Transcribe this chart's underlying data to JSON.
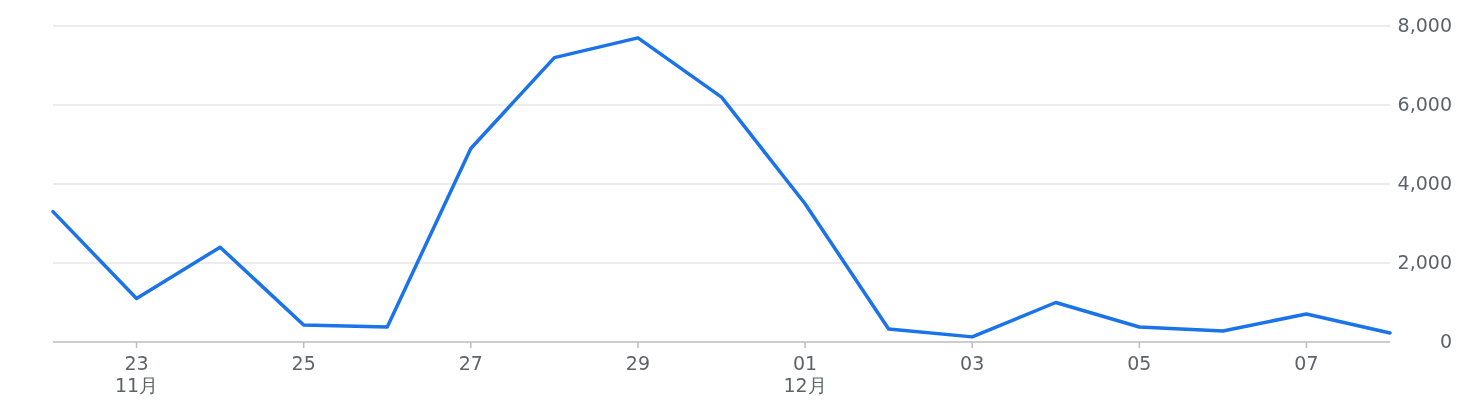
{
  "chart_data": {
    "type": "line",
    "x": [
      "--11-22",
      "--11-23",
      "--11-24",
      "--11-25",
      "--11-26",
      "--11-27",
      "--11-28",
      "--11-29",
      "--11-30",
      "--12-01",
      "--12-02",
      "--12-03",
      "--12-04",
      "--12-05",
      "--12-06",
      "--12-07",
      "--12-08"
    ],
    "series": [
      {
        "color": "#1a73e8",
        "values": [
          3300,
          1100,
          2400,
          430,
          380,
          4900,
          7200,
          7700,
          6200,
          3500,
          330,
          130,
          1000,
          380,
          280,
          710,
          230
        ]
      }
    ],
    "xlim": [
      "--11-22",
      "--12-08"
    ],
    "xticks": [
      {
        "value": "--11-23",
        "label": "23\n11月"
      },
      {
        "value": "--11-25",
        "label": "25"
      },
      {
        "value": "--11-27",
        "label": "27"
      },
      {
        "value": "--11-29",
        "label": "29"
      },
      {
        "value": "--12-01",
        "label": "01\n12月"
      },
      {
        "value": "--12-03",
        "label": "03"
      },
      {
        "value": "--12-05",
        "label": "05"
      },
      {
        "value": "--12-07",
        "label": "07"
      }
    ],
    "ylim": [
      0,
      8000
    ],
    "yticks": [
      {
        "value": 0,
        "label": "0"
      },
      {
        "value": 2000,
        "label": "2,000"
      },
      {
        "value": 4000,
        "label": "4,000"
      },
      {
        "value": 6000,
        "label": "6,000"
      },
      {
        "value": 8000,
        "label": "8,000"
      }
    ],
    "grid": "y",
    "marker": "none",
    "line_style": "solid"
  }
}
